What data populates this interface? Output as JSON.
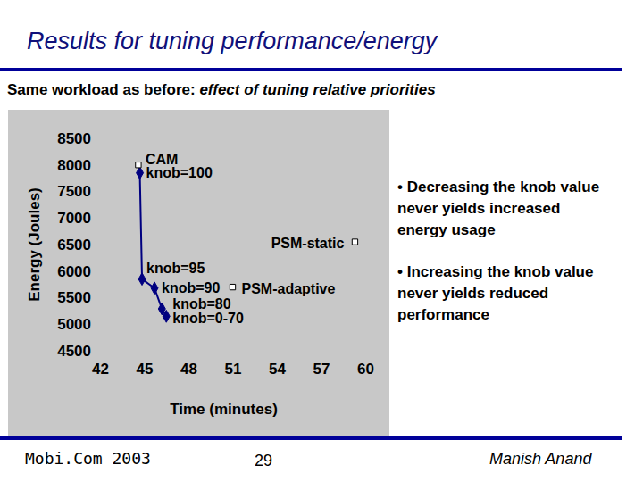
{
  "chart_data": {
    "type": "line",
    "x_label": "Time (minutes)",
    "y_label": "Energy (Joules)",
    "xlim": [
      42,
      60
    ],
    "xticks": [
      42,
      45,
      48,
      51,
      54,
      57,
      60
    ],
    "ylim": [
      4500,
      8500
    ],
    "yticks": [
      4500,
      5000,
      5500,
      6000,
      6500,
      7000,
      7500,
      8000,
      8500
    ],
    "grid": false,
    "series": [
      {
        "type": "line",
        "marker": "diamond",
        "color": "#000080",
        "x": [
          44.7,
          44.85,
          45.7,
          46.2,
          46.5
        ],
        "values": [
          7850,
          5850,
          5680,
          5290,
          5150
        ],
        "labels": [
          "knob=100",
          "knob=95",
          "knob=90",
          "knob=80",
          "knob=0-70"
        ]
      },
      {
        "type": "scatter",
        "marker": "square",
        "color": "#ffffff",
        "x": [
          44.6,
          59.3,
          51
        ],
        "values": [
          8000,
          6550,
          5700
        ],
        "labels": [
          "CAM",
          "PSM-static",
          "PSM-adaptive"
        ]
      }
    ]
  },
  "slide": {
    "title": "Results for tuning performance/energy",
    "subtitle": {
      "text": "Same workload as before: ",
      "emphasis": "effect of tuning relative priorities"
    },
    "bullets": [
      [
        "• Decreasing the knob value",
        "never yields increased",
        "energy usage"
      ],
      [
        "• Increasing the knob value",
        "never yields reduced",
        "performance"
      ]
    ],
    "footer": {
      "left": "Mobi.Com 2003",
      "center": "29",
      "right": "Manish Anand"
    }
  }
}
